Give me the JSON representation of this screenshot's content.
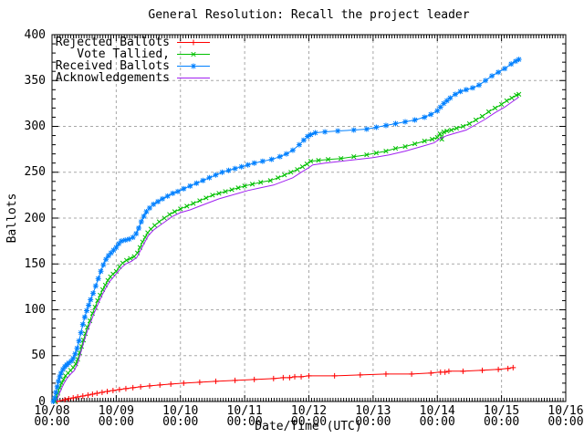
{
  "chart_data": {
    "type": "line",
    "title": "General Resolution: Recall the project leader",
    "xlabel": "Date/Time (UTC)",
    "ylabel": "Ballots",
    "ylim": [
      0,
      400
    ],
    "y_tick_step": 50,
    "y_minor_step": 10,
    "x_days": 8,
    "x_minor_per_day": 24,
    "grid": true,
    "legend_position": "top-left",
    "colors": {
      "grid": "#a8a8a8",
      "border": "#000000",
      "background": "#ffffff"
    },
    "xticks": [
      {
        "date": "10/08",
        "time": "00:00"
      },
      {
        "date": "10/09",
        "time": "00:00"
      },
      {
        "date": "10/10",
        "time": "00:00"
      },
      {
        "date": "10/11",
        "time": "00:00"
      },
      {
        "date": "10/12",
        "time": "00:00"
      },
      {
        "date": "10/13",
        "time": "00:00"
      },
      {
        "date": "10/14",
        "time": "00:00"
      },
      {
        "date": "10/15",
        "time": "00:00"
      },
      {
        "date": "10/16",
        "time": "00:00"
      }
    ],
    "yticks": [
      0,
      50,
      100,
      150,
      200,
      250,
      300,
      350,
      400
    ],
    "series": [
      {
        "name": "Rejected Ballots",
        "color": "#ff0000",
        "marker": "plus",
        "points": [
          [
            0.08,
            0
          ],
          [
            0.2,
            2
          ],
          [
            0.26,
            3
          ],
          [
            0.33,
            4
          ],
          [
            0.4,
            5
          ],
          [
            0.48,
            6
          ],
          [
            0.56,
            7
          ],
          [
            0.63,
            8
          ],
          [
            0.7,
            9
          ],
          [
            0.78,
            10
          ],
          [
            0.86,
            11
          ],
          [
            0.95,
            12
          ],
          [
            1.05,
            13
          ],
          [
            1.15,
            14
          ],
          [
            1.26,
            15
          ],
          [
            1.38,
            16
          ],
          [
            1.52,
            17
          ],
          [
            1.68,
            18
          ],
          [
            1.85,
            19
          ],
          [
            2.05,
            20
          ],
          [
            2.3,
            21
          ],
          [
            2.55,
            22
          ],
          [
            2.85,
            23
          ],
          [
            3.15,
            24
          ],
          [
            3.45,
            25
          ],
          [
            3.6,
            26
          ],
          [
            3.7,
            26
          ],
          [
            3.78,
            27
          ],
          [
            3.88,
            27
          ],
          [
            4.0,
            28
          ],
          [
            4.4,
            28
          ],
          [
            4.8,
            29
          ],
          [
            5.2,
            30
          ],
          [
            5.6,
            30
          ],
          [
            5.9,
            31
          ],
          [
            6.05,
            32
          ],
          [
            6.12,
            32
          ],
          [
            6.18,
            33
          ],
          [
            6.4,
            33
          ],
          [
            6.7,
            34
          ],
          [
            6.95,
            35
          ],
          [
            7.1,
            36
          ],
          [
            7.18,
            37
          ]
        ]
      },
      {
        "name": "Vote Tallied,",
        "color": "#00c000",
        "marker": "cross",
        "points": [
          [
            0.05,
            0
          ],
          [
            0.07,
            4
          ],
          [
            0.09,
            9
          ],
          [
            0.12,
            15
          ],
          [
            0.15,
            20
          ],
          [
            0.18,
            24
          ],
          [
            0.21,
            28
          ],
          [
            0.25,
            31
          ],
          [
            0.29,
            34
          ],
          [
            0.33,
            37
          ],
          [
            0.37,
            41
          ],
          [
            0.4,
            46
          ],
          [
            0.43,
            53
          ],
          [
            0.46,
            60
          ],
          [
            0.49,
            67
          ],
          [
            0.52,
            74
          ],
          [
            0.55,
            81
          ],
          [
            0.59,
            88
          ],
          [
            0.63,
            96
          ],
          [
            0.67,
            103
          ],
          [
            0.71,
            110
          ],
          [
            0.75,
            116
          ],
          [
            0.79,
            122
          ],
          [
            0.83,
            127
          ],
          [
            0.87,
            132
          ],
          [
            0.91,
            136
          ],
          [
            0.95,
            139
          ],
          [
            1.0,
            142
          ],
          [
            1.05,
            147
          ],
          [
            1.1,
            151
          ],
          [
            1.16,
            154
          ],
          [
            1.22,
            156
          ],
          [
            1.28,
            158
          ],
          [
            1.33,
            162
          ],
          [
            1.37,
            168
          ],
          [
            1.41,
            174
          ],
          [
            1.45,
            179
          ],
          [
            1.49,
            184
          ],
          [
            1.54,
            188
          ],
          [
            1.6,
            192
          ],
          [
            1.67,
            196
          ],
          [
            1.75,
            200
          ],
          [
            1.83,
            204
          ],
          [
            1.91,
            207
          ],
          [
            2.0,
            210
          ],
          [
            2.1,
            213
          ],
          [
            2.2,
            216
          ],
          [
            2.3,
            219
          ],
          [
            2.4,
            222
          ],
          [
            2.5,
            225
          ],
          [
            2.6,
            227
          ],
          [
            2.7,
            229
          ],
          [
            2.8,
            231
          ],
          [
            2.9,
            233
          ],
          [
            3.0,
            235
          ],
          [
            3.12,
            237
          ],
          [
            3.25,
            239
          ],
          [
            3.4,
            241
          ],
          [
            3.52,
            244
          ],
          [
            3.62,
            247
          ],
          [
            3.72,
            250
          ],
          [
            3.82,
            253
          ],
          [
            3.9,
            256
          ],
          [
            3.97,
            259
          ],
          [
            4.03,
            262
          ],
          [
            4.15,
            263
          ],
          [
            4.3,
            264
          ],
          [
            4.5,
            265
          ],
          [
            4.7,
            267
          ],
          [
            4.9,
            269
          ],
          [
            5.05,
            271
          ],
          [
            5.2,
            273
          ],
          [
            5.35,
            276
          ],
          [
            5.5,
            278
          ],
          [
            5.65,
            281
          ],
          [
            5.8,
            284
          ],
          [
            5.92,
            286
          ],
          [
            6.0,
            288
          ],
          [
            6.04,
            292
          ],
          [
            6.07,
            286
          ],
          [
            6.1,
            294
          ],
          [
            6.15,
            295
          ],
          [
            6.22,
            296
          ],
          [
            6.3,
            298
          ],
          [
            6.4,
            300
          ],
          [
            6.5,
            303
          ],
          [
            6.6,
            307
          ],
          [
            6.7,
            311
          ],
          [
            6.8,
            316
          ],
          [
            6.9,
            320
          ],
          [
            7.0,
            324
          ],
          [
            7.08,
            328
          ],
          [
            7.16,
            331
          ],
          [
            7.23,
            334
          ],
          [
            7.27,
            335
          ]
        ]
      },
      {
        "name": "Received Ballots",
        "color": "#0080ff",
        "marker": "star",
        "points": [
          [
            0.02,
            0
          ],
          [
            0.04,
            4
          ],
          [
            0.06,
            10
          ],
          [
            0.08,
            16
          ],
          [
            0.1,
            22
          ],
          [
            0.12,
            27
          ],
          [
            0.14,
            31
          ],
          [
            0.17,
            35
          ],
          [
            0.2,
            38
          ],
          [
            0.23,
            40
          ],
          [
            0.26,
            42
          ],
          [
            0.3,
            44
          ],
          [
            0.33,
            47
          ],
          [
            0.36,
            52
          ],
          [
            0.39,
            58
          ],
          [
            0.42,
            66
          ],
          [
            0.45,
            75
          ],
          [
            0.48,
            84
          ],
          [
            0.51,
            92
          ],
          [
            0.54,
            99
          ],
          [
            0.57,
            105
          ],
          [
            0.6,
            111
          ],
          [
            0.64,
            118
          ],
          [
            0.68,
            126
          ],
          [
            0.72,
            134
          ],
          [
            0.76,
            142
          ],
          [
            0.8,
            149
          ],
          [
            0.84,
            155
          ],
          [
            0.88,
            159
          ],
          [
            0.92,
            162
          ],
          [
            0.96,
            165
          ],
          [
            1.0,
            168
          ],
          [
            1.04,
            172
          ],
          [
            1.08,
            175
          ],
          [
            1.14,
            176
          ],
          [
            1.2,
            177
          ],
          [
            1.26,
            179
          ],
          [
            1.31,
            183
          ],
          [
            1.35,
            189
          ],
          [
            1.39,
            196
          ],
          [
            1.43,
            202
          ],
          [
            1.47,
            207
          ],
          [
            1.52,
            211
          ],
          [
            1.58,
            215
          ],
          [
            1.65,
            218
          ],
          [
            1.72,
            221
          ],
          [
            1.8,
            224
          ],
          [
            1.88,
            227
          ],
          [
            1.96,
            229
          ],
          [
            2.05,
            232
          ],
          [
            2.15,
            235
          ],
          [
            2.25,
            238
          ],
          [
            2.35,
            241
          ],
          [
            2.45,
            244
          ],
          [
            2.55,
            247
          ],
          [
            2.65,
            250
          ],
          [
            2.75,
            252
          ],
          [
            2.85,
            254
          ],
          [
            2.95,
            256
          ],
          [
            3.05,
            258
          ],
          [
            3.15,
            260
          ],
          [
            3.28,
            262
          ],
          [
            3.42,
            264
          ],
          [
            3.55,
            267
          ],
          [
            3.65,
            270
          ],
          [
            3.75,
            274
          ],
          [
            3.85,
            280
          ],
          [
            3.92,
            285
          ],
          [
            3.98,
            289
          ],
          [
            4.03,
            291
          ],
          [
            4.1,
            293
          ],
          [
            4.25,
            294
          ],
          [
            4.45,
            295
          ],
          [
            4.7,
            296
          ],
          [
            4.9,
            297
          ],
          [
            5.05,
            299
          ],
          [
            5.2,
            301
          ],
          [
            5.35,
            303
          ],
          [
            5.5,
            305
          ],
          [
            5.65,
            307
          ],
          [
            5.8,
            310
          ],
          [
            5.9,
            313
          ],
          [
            6.0,
            317
          ],
          [
            6.05,
            321
          ],
          [
            6.1,
            325
          ],
          [
            6.15,
            328
          ],
          [
            6.2,
            331
          ],
          [
            6.28,
            335
          ],
          [
            6.36,
            338
          ],
          [
            6.45,
            340
          ],
          [
            6.55,
            342
          ],
          [
            6.65,
            345
          ],
          [
            6.75,
            350
          ],
          [
            6.85,
            355
          ],
          [
            6.95,
            359
          ],
          [
            7.05,
            363
          ],
          [
            7.15,
            368
          ],
          [
            7.22,
            371
          ],
          [
            7.27,
            373
          ]
        ]
      },
      {
        "name": "Acknowledgements",
        "color": "#a020f0",
        "marker": "none",
        "points": [
          [
            0.07,
            0
          ],
          [
            0.1,
            6
          ],
          [
            0.14,
            13
          ],
          [
            0.18,
            19
          ],
          [
            0.23,
            25
          ],
          [
            0.29,
            30
          ],
          [
            0.35,
            34
          ],
          [
            0.4,
            42
          ],
          [
            0.45,
            54
          ],
          [
            0.5,
            66
          ],
          [
            0.55,
            77
          ],
          [
            0.6,
            86
          ],
          [
            0.66,
            97
          ],
          [
            0.72,
            107
          ],
          [
            0.78,
            116
          ],
          [
            0.84,
            124
          ],
          [
            0.9,
            131
          ],
          [
            0.96,
            136
          ],
          [
            1.02,
            141
          ],
          [
            1.08,
            146
          ],
          [
            1.15,
            150
          ],
          [
            1.24,
            153
          ],
          [
            1.32,
            157
          ],
          [
            1.38,
            165
          ],
          [
            1.44,
            173
          ],
          [
            1.5,
            181
          ],
          [
            1.58,
            187
          ],
          [
            1.68,
            192
          ],
          [
            1.78,
            197
          ],
          [
            1.88,
            202
          ],
          [
            2.0,
            206
          ],
          [
            2.15,
            209
          ],
          [
            2.3,
            213
          ],
          [
            2.45,
            217
          ],
          [
            2.6,
            221
          ],
          [
            2.75,
            224
          ],
          [
            2.9,
            227
          ],
          [
            3.05,
            230
          ],
          [
            3.25,
            233
          ],
          [
            3.45,
            236
          ],
          [
            3.6,
            240
          ],
          [
            3.75,
            244
          ],
          [
            3.88,
            250
          ],
          [
            4.0,
            255
          ],
          [
            4.06,
            258
          ],
          [
            4.25,
            260
          ],
          [
            4.5,
            262
          ],
          [
            4.75,
            264
          ],
          [
            5.0,
            266
          ],
          [
            5.25,
            269
          ],
          [
            5.5,
            273
          ],
          [
            5.75,
            278
          ],
          [
            5.95,
            282
          ],
          [
            6.05,
            287
          ],
          [
            6.15,
            290
          ],
          [
            6.3,
            293
          ],
          [
            6.45,
            296
          ],
          [
            6.6,
            302
          ],
          [
            6.75,
            308
          ],
          [
            6.9,
            315
          ],
          [
            7.05,
            321
          ],
          [
            7.15,
            326
          ],
          [
            7.23,
            330
          ],
          [
            7.27,
            332
          ]
        ]
      }
    ]
  }
}
